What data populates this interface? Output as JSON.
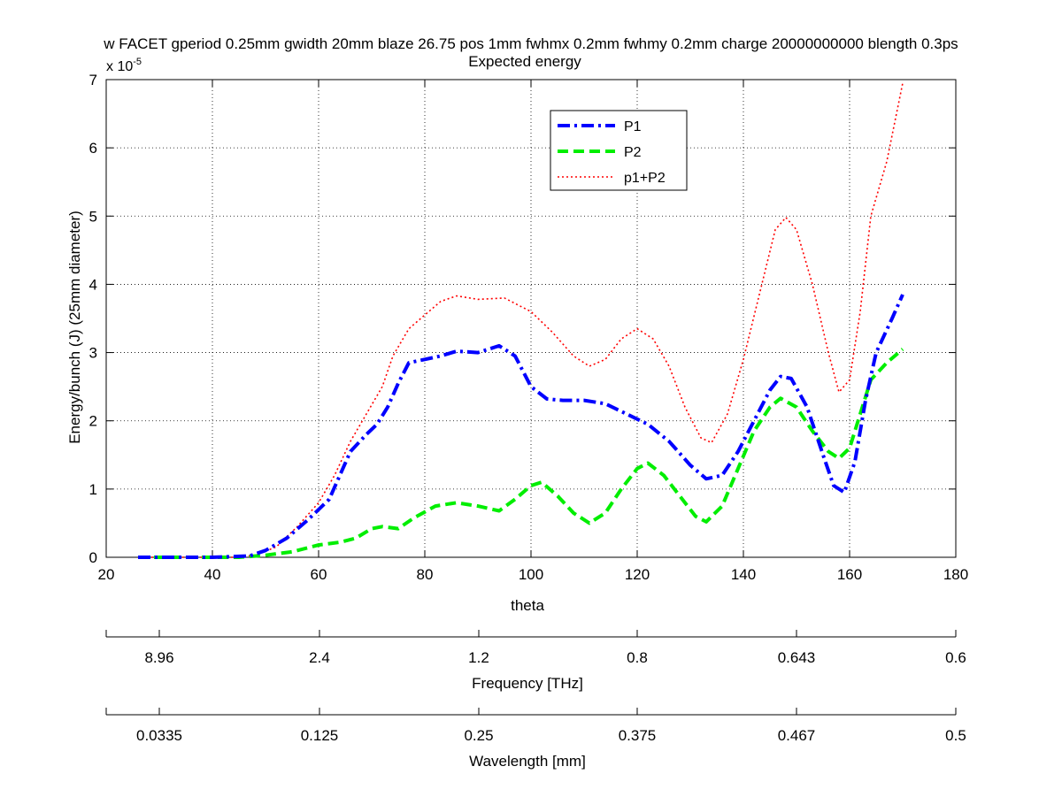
{
  "chart_data": {
    "type": "line",
    "title_line1": "w FACET gperiod 0.25mm gwidth 20mm blaze 26.75 pos 1mm fwhmx 0.2mm fwhmy 0.2mm charge 20000000000 blength 0.3ps",
    "title_line2": "Expected energy",
    "xlabel": "theta",
    "ylabel": "Energy/bunch (J) (25mm diameter)",
    "y_exponent_base": "x 10",
    "y_exponent_power": "-5",
    "xlim": [
      20,
      180
    ],
    "ylim": [
      0,
      7
    ],
    "x_ticks": [
      20,
      40,
      60,
      80,
      100,
      120,
      140,
      160,
      180
    ],
    "y_ticks": [
      0,
      1,
      2,
      3,
      4,
      5,
      6,
      7
    ],
    "grid": true,
    "legend_position": "top-center",
    "series": [
      {
        "name": "P1",
        "color": "#0000ff",
        "style": "dashdot",
        "points": [
          [
            26,
            0
          ],
          [
            40,
            0
          ],
          [
            47,
            0.02
          ],
          [
            50,
            0.1
          ],
          [
            54,
            0.28
          ],
          [
            58,
            0.55
          ],
          [
            62,
            0.85
          ],
          [
            64,
            1.2
          ],
          [
            66,
            1.55
          ],
          [
            69,
            1.8
          ],
          [
            71,
            1.95
          ],
          [
            73,
            2.2
          ],
          [
            75,
            2.55
          ],
          [
            77,
            2.85
          ],
          [
            80,
            2.9
          ],
          [
            83,
            2.95
          ],
          [
            86,
            3.02
          ],
          [
            90,
            3.0
          ],
          [
            94,
            3.1
          ],
          [
            97,
            2.95
          ],
          [
            100,
            2.5
          ],
          [
            103,
            2.32
          ],
          [
            106,
            2.3
          ],
          [
            110,
            2.3
          ],
          [
            114,
            2.25
          ],
          [
            118,
            2.1
          ],
          [
            122,
            1.95
          ],
          [
            126,
            1.7
          ],
          [
            130,
            1.35
          ],
          [
            133,
            1.15
          ],
          [
            136,
            1.2
          ],
          [
            139,
            1.55
          ],
          [
            142,
            2.0
          ],
          [
            145,
            2.45
          ],
          [
            147,
            2.65
          ],
          [
            149,
            2.62
          ],
          [
            152,
            2.2
          ],
          [
            155,
            1.5
          ],
          [
            157,
            1.05
          ],
          [
            159,
            0.95
          ],
          [
            161,
            1.4
          ],
          [
            163,
            2.3
          ],
          [
            165,
            3.0
          ],
          [
            168,
            3.5
          ],
          [
            170,
            3.85
          ]
        ]
      },
      {
        "name": "P2",
        "color": "#00ee00",
        "style": "dashed",
        "points": [
          [
            26,
            0
          ],
          [
            45,
            0
          ],
          [
            50,
            0.03
          ],
          [
            55,
            0.08
          ],
          [
            60,
            0.18
          ],
          [
            64,
            0.22
          ],
          [
            67,
            0.28
          ],
          [
            70,
            0.42
          ],
          [
            72,
            0.45
          ],
          [
            75,
            0.42
          ],
          [
            78,
            0.58
          ],
          [
            82,
            0.75
          ],
          [
            86,
            0.8
          ],
          [
            90,
            0.75
          ],
          [
            94,
            0.68
          ],
          [
            97,
            0.85
          ],
          [
            100,
            1.05
          ],
          [
            102,
            1.1
          ],
          [
            105,
            0.9
          ],
          [
            108,
            0.65
          ],
          [
            111,
            0.5
          ],
          [
            114,
            0.65
          ],
          [
            117,
            1.0
          ],
          [
            120,
            1.3
          ],
          [
            122,
            1.38
          ],
          [
            125,
            1.2
          ],
          [
            128,
            0.9
          ],
          [
            131,
            0.6
          ],
          [
            133,
            0.52
          ],
          [
            136,
            0.75
          ],
          [
            139,
            1.3
          ],
          [
            142,
            1.85
          ],
          [
            145,
            2.2
          ],
          [
            147,
            2.33
          ],
          [
            150,
            2.2
          ],
          [
            153,
            1.85
          ],
          [
            156,
            1.55
          ],
          [
            158,
            1.45
          ],
          [
            160,
            1.6
          ],
          [
            162,
            2.1
          ],
          [
            164,
            2.6
          ],
          [
            167,
            2.85
          ],
          [
            170,
            3.05
          ]
        ]
      },
      {
        "name": "p1+P2",
        "color": "#ff0000",
        "style": "dotted",
        "points": [
          [
            26,
            0
          ],
          [
            44,
            0
          ],
          [
            48,
            0.03
          ],
          [
            52,
            0.15
          ],
          [
            56,
            0.45
          ],
          [
            60,
            0.8
          ],
          [
            63,
            1.2
          ],
          [
            66,
            1.7
          ],
          [
            69,
            2.1
          ],
          [
            72,
            2.5
          ],
          [
            74,
            2.95
          ],
          [
            77,
            3.35
          ],
          [
            80,
            3.55
          ],
          [
            83,
            3.75
          ],
          [
            86,
            3.83
          ],
          [
            90,
            3.78
          ],
          [
            95,
            3.8
          ],
          [
            100,
            3.6
          ],
          [
            104,
            3.3
          ],
          [
            108,
            2.95
          ],
          [
            111,
            2.8
          ],
          [
            114,
            2.9
          ],
          [
            117,
            3.2
          ],
          [
            120,
            3.35
          ],
          [
            123,
            3.2
          ],
          [
            126,
            2.8
          ],
          [
            129,
            2.2
          ],
          [
            132,
            1.75
          ],
          [
            134,
            1.68
          ],
          [
            137,
            2.1
          ],
          [
            140,
            2.9
          ],
          [
            143,
            3.85
          ],
          [
            146,
            4.8
          ],
          [
            148,
            4.98
          ],
          [
            150,
            4.8
          ],
          [
            153,
            4.0
          ],
          [
            156,
            3.0
          ],
          [
            158,
            2.42
          ],
          [
            160,
            2.6
          ],
          [
            162,
            3.6
          ],
          [
            164,
            5.0
          ],
          [
            167,
            5.8
          ],
          [
            170,
            6.95
          ]
        ]
      }
    ],
    "frequency_axis": {
      "label": "Frequency [THz]",
      "ticks": [
        "8.96",
        "2.4",
        "1.2",
        "0.8",
        "0.643",
        "0.6"
      ]
    },
    "wavelength_axis": {
      "label": "Wavelength [mm]",
      "ticks": [
        "0.0335",
        "0.125",
        "0.25",
        "0.375",
        "0.467",
        "0.5"
      ]
    }
  }
}
